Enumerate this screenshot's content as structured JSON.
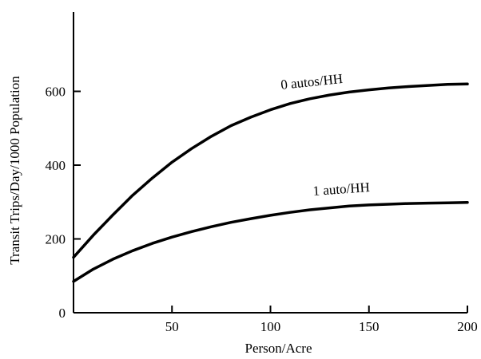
{
  "chart_data": {
    "type": "line",
    "title": "",
    "xlabel": "Person/Acre",
    "ylabel": "Transit Trips/Day/1000 Population",
    "xlim": [
      0,
      200
    ],
    "ylim": [
      0,
      800
    ],
    "xticks": [
      50,
      100,
      150,
      200
    ],
    "yticks": [
      0,
      200,
      400,
      600
    ],
    "grid": false,
    "legend": "none",
    "series": [
      {
        "name": "0 autos/HH",
        "x": [
          0,
          10,
          20,
          30,
          40,
          50,
          60,
          70,
          80,
          90,
          100,
          110,
          120,
          130,
          140,
          150,
          160,
          170,
          180,
          190,
          200
        ],
        "y": [
          150,
          210,
          265,
          318,
          365,
          408,
          445,
          478,
          507,
          530,
          550,
          567,
          580,
          590,
          598,
          604,
          609,
          613,
          616,
          619,
          620
        ]
      },
      {
        "name": "1 auto/HH",
        "x": [
          0,
          10,
          20,
          30,
          40,
          50,
          60,
          70,
          80,
          90,
          100,
          110,
          120,
          130,
          140,
          150,
          160,
          170,
          180,
          190,
          200
        ],
        "y": [
          85,
          118,
          145,
          168,
          188,
          205,
          220,
          233,
          245,
          255,
          264,
          272,
          279,
          284,
          289,
          292,
          294,
          296,
          297,
          298,
          299
        ]
      }
    ],
    "colors": {
      "line": "#000000",
      "axis": "#000000"
    }
  }
}
